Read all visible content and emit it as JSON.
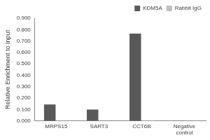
{
  "chart_data": {
    "type": "bar",
    "y_label": "Relative Enrichment to Input",
    "categories": [
      "MRPS15",
      "SART3",
      "CCT6B",
      "Negative control"
    ],
    "series": [
      {
        "name": "KDM5A",
        "color": "#595959",
        "values": [
          0.145,
          0.1,
          0.765,
          0.002
        ]
      },
      {
        "name": "Rabbit IgG",
        "color": "#bfbfbf",
        "values": [
          0.002,
          0.001,
          0.003,
          0.0
        ]
      }
    ],
    "ylim": [
      0,
      0.9
    ],
    "yticks": [
      {
        "value": 0,
        "label": "0.000"
      },
      {
        "value": 0.1,
        "label": "0.100"
      },
      {
        "value": 0.2,
        "label": "0.200"
      },
      {
        "value": 0.3,
        "label": "0.300"
      },
      {
        "value": 0.4,
        "label": "0.400"
      },
      {
        "value": 0.5,
        "label": "0.500"
      },
      {
        "value": 0.6,
        "label": "0.600"
      },
      {
        "value": 0.7,
        "label": "0.700"
      },
      {
        "value": 0.8,
        "label": "0.800"
      },
      {
        "value": 0.9,
        "label": "0.900"
      }
    ],
    "grid": false,
    "legend": "top-right"
  }
}
